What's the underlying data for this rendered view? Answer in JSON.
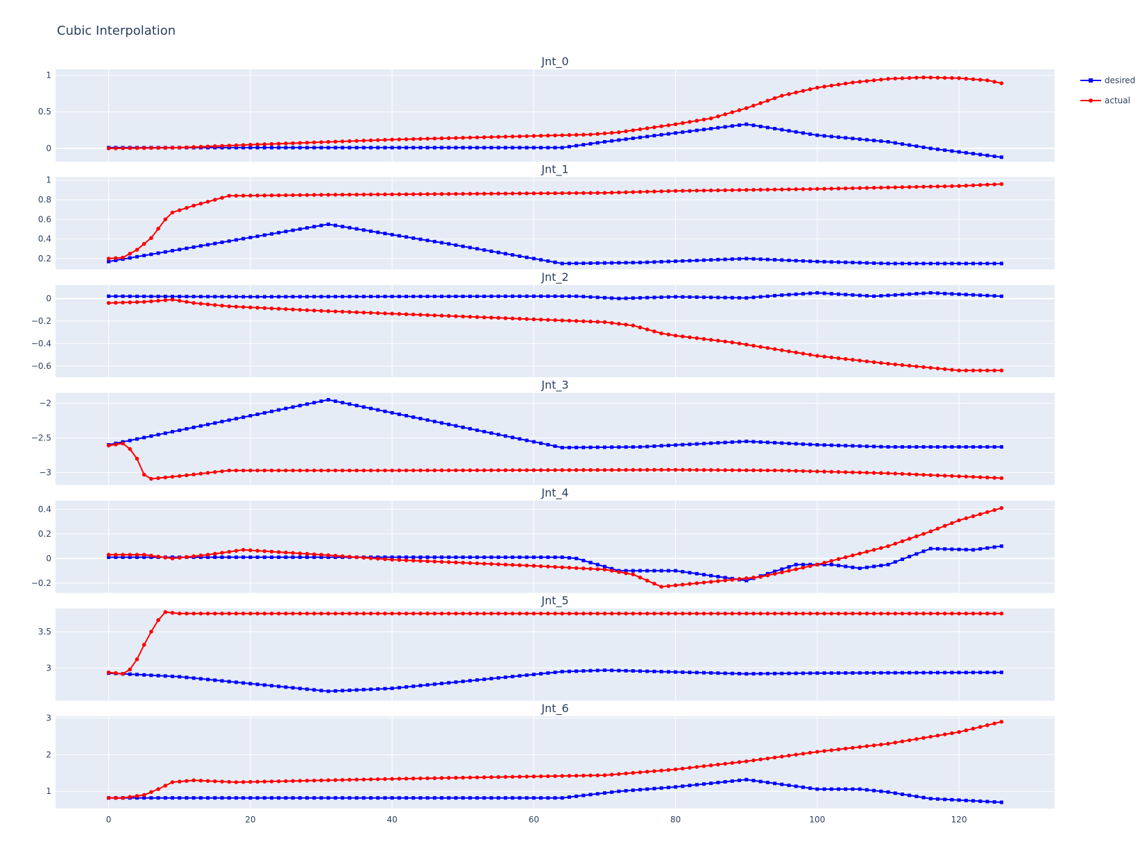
{
  "chart_data": {
    "type": "line",
    "title": "Cubic Interpolation",
    "x_range": [
      -7.5,
      133.5
    ],
    "x_ticks": [
      0,
      20,
      40,
      60,
      80,
      100,
      120
    ],
    "legend": {
      "placement": "top-right",
      "entries": [
        {
          "name": "desired",
          "color": "#0000ff",
          "marker": "square"
        },
        {
          "name": "actual",
          "color": "#ff0000",
          "marker": "circle"
        }
      ]
    },
    "grid": true,
    "colors": {
      "plot_bg": "#e5ecf6",
      "grid": "#ffffff",
      "desired": "#0000ff",
      "actual": "#ff0000"
    },
    "subplots": [
      {
        "title": "Jnt_0",
        "yrange": [
          -0.18,
          1.08
        ],
        "yticks": [
          {
            "v": 0,
            "label": "0"
          },
          {
            "v": 0.5,
            "label": "0.5"
          },
          {
            "v": 1,
            "label": "1"
          }
        ],
        "desired": [
          [
            0,
            0.01
          ],
          [
            64,
            0.01
          ],
          [
            70,
            0.09
          ],
          [
            80,
            0.21
          ],
          [
            90,
            0.33
          ],
          [
            100,
            0.18
          ],
          [
            110,
            0.09
          ],
          [
            116,
            0.0
          ],
          [
            126,
            -0.12
          ]
        ],
        "actual": [
          [
            0,
            0.0
          ],
          [
            10,
            0.01
          ],
          [
            20,
            0.05
          ],
          [
            40,
            0.12
          ],
          [
            60,
            0.17
          ],
          [
            68,
            0.19
          ],
          [
            72,
            0.22
          ],
          [
            80,
            0.33
          ],
          [
            85,
            0.41
          ],
          [
            90,
            0.55
          ],
          [
            95,
            0.72
          ],
          [
            100,
            0.83
          ],
          [
            105,
            0.9
          ],
          [
            110,
            0.95
          ],
          [
            115,
            0.97
          ],
          [
            120,
            0.96
          ],
          [
            124,
            0.93
          ],
          [
            126,
            0.89
          ]
        ]
      },
      {
        "title": "Jnt_1",
        "yrange": [
          0.09,
          1.03
        ],
        "yticks": [
          {
            "v": 0.2,
            "label": "0.2"
          },
          {
            "v": 0.4,
            "label": "0.4"
          },
          {
            "v": 0.6,
            "label": "0.6"
          },
          {
            "v": 0.8,
            "label": "0.8"
          },
          {
            "v": 1,
            "label": "1"
          }
        ],
        "desired": [
          [
            0,
            0.17
          ],
          [
            31,
            0.55
          ],
          [
            48,
            0.35
          ],
          [
            64,
            0.15
          ],
          [
            75,
            0.16
          ],
          [
            90,
            0.2
          ],
          [
            100,
            0.17
          ],
          [
            110,
            0.15
          ],
          [
            126,
            0.15
          ]
        ],
        "actual": [
          [
            0,
            0.2
          ],
          [
            2,
            0.21
          ],
          [
            4,
            0.29
          ],
          [
            6,
            0.41
          ],
          [
            8,
            0.6
          ],
          [
            9,
            0.67
          ],
          [
            12,
            0.74
          ],
          [
            17,
            0.84
          ],
          [
            30,
            0.85
          ],
          [
            50,
            0.86
          ],
          [
            70,
            0.87
          ],
          [
            80,
            0.89
          ],
          [
            100,
            0.91
          ],
          [
            120,
            0.94
          ],
          [
            126,
            0.96
          ]
        ]
      },
      {
        "title": "Jnt_2",
        "yrange": [
          -0.7,
          0.12
        ],
        "yticks": [
          {
            "v": 0,
            "label": "0"
          },
          {
            "v": -0.2,
            "label": "−0.2"
          },
          {
            "v": -0.4,
            "label": "−0.4"
          },
          {
            "v": -0.6,
            "label": "−0.6"
          }
        ],
        "desired": [
          [
            0,
            0.02
          ],
          [
            20,
            0.015
          ],
          [
            60,
            0.02
          ],
          [
            66,
            0.02
          ],
          [
            72,
            0.0
          ],
          [
            80,
            0.015
          ],
          [
            90,
            0.005
          ],
          [
            95,
            0.03
          ],
          [
            100,
            0.05
          ],
          [
            108,
            0.02
          ],
          [
            116,
            0.05
          ],
          [
            126,
            0.02
          ]
        ],
        "actual": [
          [
            0,
            -0.04
          ],
          [
            5,
            -0.03
          ],
          [
            9,
            -0.01
          ],
          [
            12,
            -0.04
          ],
          [
            17,
            -0.07
          ],
          [
            30,
            -0.11
          ],
          [
            50,
            -0.16
          ],
          [
            66,
            -0.2
          ],
          [
            70,
            -0.21
          ],
          [
            74,
            -0.24
          ],
          [
            78,
            -0.31
          ],
          [
            80,
            -0.33
          ],
          [
            88,
            -0.39
          ],
          [
            95,
            -0.46
          ],
          [
            100,
            -0.51
          ],
          [
            110,
            -0.58
          ],
          [
            120,
            -0.64
          ],
          [
            126,
            -0.64
          ]
        ]
      },
      {
        "title": "Jnt_3",
        "yrange": [
          -3.18,
          -1.85
        ],
        "yticks": [
          {
            "v": -2,
            "label": "−2"
          },
          {
            "v": -2.5,
            "label": "−2.5"
          },
          {
            "v": -3,
            "label": "−3"
          }
        ],
        "desired": [
          [
            0,
            -2.6
          ],
          [
            31,
            -1.95
          ],
          [
            64,
            -2.64
          ],
          [
            75,
            -2.63
          ],
          [
            90,
            -2.55
          ],
          [
            100,
            -2.6
          ],
          [
            110,
            -2.63
          ],
          [
            126,
            -2.63
          ]
        ],
        "actual": [
          [
            0,
            -2.61
          ],
          [
            2,
            -2.58
          ],
          [
            3,
            -2.66
          ],
          [
            4,
            -2.8
          ],
          [
            5,
            -3.03
          ],
          [
            6,
            -3.09
          ],
          [
            8,
            -3.07
          ],
          [
            10,
            -3.05
          ],
          [
            17,
            -2.97
          ],
          [
            40,
            -2.97
          ],
          [
            80,
            -2.96
          ],
          [
            95,
            -2.97
          ],
          [
            110,
            -3.01
          ],
          [
            126,
            -3.08
          ]
        ]
      },
      {
        "title": "Jnt_4",
        "yrange": [
          -0.28,
          0.47
        ],
        "yticks": [
          {
            "v": -0.2,
            "label": "−0.2"
          },
          {
            "v": 0,
            "label": "0"
          },
          {
            "v": 0.2,
            "label": "0.2"
          },
          {
            "v": 0.4,
            "label": "0.4"
          }
        ],
        "desired": [
          [
            0,
            0.01
          ],
          [
            40,
            0.01
          ],
          [
            64,
            0.01
          ],
          [
            66,
            0.0
          ],
          [
            72,
            -0.1
          ],
          [
            80,
            -0.1
          ],
          [
            90,
            -0.18
          ],
          [
            97,
            -0.05
          ],
          [
            102,
            -0.05
          ],
          [
            106,
            -0.08
          ],
          [
            110,
            -0.05
          ],
          [
            116,
            0.08
          ],
          [
            122,
            0.07
          ],
          [
            126,
            0.1
          ]
        ],
        "actual": [
          [
            0,
            0.03
          ],
          [
            5,
            0.03
          ],
          [
            9,
            0.0
          ],
          [
            14,
            0.03
          ],
          [
            19,
            0.07
          ],
          [
            30,
            0.03
          ],
          [
            40,
            -0.01
          ],
          [
            60,
            -0.06
          ],
          [
            70,
            -0.09
          ],
          [
            74,
            -0.13
          ],
          [
            78,
            -0.23
          ],
          [
            85,
            -0.19
          ],
          [
            92,
            -0.15
          ],
          [
            100,
            -0.05
          ],
          [
            110,
            0.1
          ],
          [
            116,
            0.22
          ],
          [
            120,
            0.31
          ],
          [
            126,
            0.41
          ]
        ]
      },
      {
        "title": "Jnt_5",
        "yrange": [
          2.55,
          3.82
        ],
        "yticks": [
          {
            "v": 3,
            "label": "3"
          },
          {
            "v": 3.5,
            "label": "3.5"
          }
        ],
        "desired": [
          [
            0,
            2.93
          ],
          [
            10,
            2.88
          ],
          [
            31,
            2.68
          ],
          [
            40,
            2.72
          ],
          [
            64,
            2.95
          ],
          [
            70,
            2.97
          ],
          [
            90,
            2.92
          ],
          [
            100,
            2.93
          ],
          [
            126,
            2.94
          ]
        ],
        "actual": [
          [
            0,
            2.94
          ],
          [
            2,
            2.92
          ],
          [
            3,
            2.98
          ],
          [
            4,
            3.12
          ],
          [
            5,
            3.32
          ],
          [
            6,
            3.5
          ],
          [
            7,
            3.66
          ],
          [
            8,
            3.77
          ],
          [
            10,
            3.75
          ],
          [
            126,
            3.75
          ]
        ]
      },
      {
        "title": "Jnt_6",
        "yrange": [
          0.53,
          3.05
        ],
        "yticks": [
          {
            "v": 1,
            "label": "1"
          },
          {
            "v": 2,
            "label": "2"
          },
          {
            "v": 3,
            "label": "3"
          }
        ],
        "desired": [
          [
            0,
            0.82
          ],
          [
            64,
            0.82
          ],
          [
            72,
            1.0
          ],
          [
            80,
            1.12
          ],
          [
            90,
            1.32
          ],
          [
            100,
            1.06
          ],
          [
            106,
            1.06
          ],
          [
            110,
            0.98
          ],
          [
            116,
            0.8
          ],
          [
            126,
            0.7
          ]
        ],
        "actual": [
          [
            0,
            0.82
          ],
          [
            2,
            0.82
          ],
          [
            5,
            0.9
          ],
          [
            7,
            1.06
          ],
          [
            9,
            1.25
          ],
          [
            12,
            1.3
          ],
          [
            18,
            1.25
          ],
          [
            40,
            1.34
          ],
          [
            70,
            1.44
          ],
          [
            80,
            1.6
          ],
          [
            90,
            1.82
          ],
          [
            100,
            2.08
          ],
          [
            110,
            2.3
          ],
          [
            120,
            2.62
          ],
          [
            126,
            2.9
          ]
        ]
      }
    ]
  }
}
